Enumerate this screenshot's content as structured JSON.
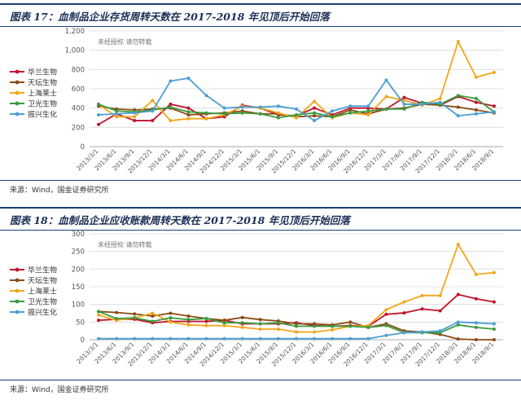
{
  "charts": [
    {
      "caption": "图表 17：血制品企业存货周转天数在 2017-2018 年见顶后开始回落",
      "watermark": "未经授权 请勿转载",
      "source": "来源：Wind，国金证券研究所"
    },
    {
      "caption": "图表 18：血制品企业应收账款周转天数在 2017-2018 年见顶后开始回落",
      "watermark": "未经授权 请勿转载",
      "source": "来源：Wind，国金证券研究所"
    }
  ],
  "chart_data": [
    {
      "type": "line",
      "title": "图表 17：血制品企业存货周转天数在 2017-2018 年见顶后开始回落",
      "x": [
        "2013/3/1",
        "2013/6/1",
        "2013/9/1",
        "2013/12/1",
        "2014/3/1",
        "2014/6/1",
        "2014/9/1",
        "2014/12/1",
        "2015/3/1",
        "2015/6/1",
        "2015/9/1",
        "2015/12/1",
        "2016/3/1",
        "2016/6/1",
        "2016/9/1",
        "2016/12/1",
        "2017/3/1",
        "2017/6/1",
        "2017/9/1",
        "2017/12/1",
        "2018/3/1",
        "2018/6/1",
        "2018/9/1"
      ],
      "ylim": [
        0,
        1200
      ],
      "yticks": [
        "0",
        "200",
        "400",
        "600",
        "800",
        "1,000",
        "1,200"
      ],
      "grid": true,
      "legend": "left",
      "series": [
        {
          "name": "华兰生物",
          "color": "#c0142b",
          "values": [
            230,
            340,
            270,
            270,
            440,
            400,
            290,
            310,
            430,
            400,
            330,
            320,
            400,
            330,
            400,
            400,
            390,
            510,
            450,
            430,
            520,
            460,
            420
          ]
        },
        {
          "name": "天坛生物",
          "color": "#8a4b14",
          "values": [
            420,
            390,
            380,
            390,
            400,
            330,
            340,
            350,
            370,
            340,
            340,
            310,
            320,
            310,
            380,
            340,
            390,
            400,
            440,
            430,
            410,
            380,
            350
          ]
        },
        {
          "name": "上海莱士",
          "color": "#f2a71b",
          "values": [
            440,
            310,
            310,
            480,
            270,
            290,
            290,
            330,
            420,
            400,
            350,
            300,
            470,
            300,
            350,
            330,
            520,
            480,
            430,
            500,
            1090,
            720,
            770
          ]
        },
        {
          "name": "卫光生物",
          "color": "#3a9b3e",
          "values": [
            440,
            370,
            360,
            380,
            410,
            360,
            350,
            340,
            350,
            340,
            300,
            330,
            350,
            310,
            350,
            370,
            390,
            390,
            460,
            440,
            530,
            500,
            360
          ]
        },
        {
          "name": "振兴生化",
          "color": "#4a9fd3",
          "values": [
            330,
            340,
            350,
            370,
            680,
            710,
            530,
            400,
            410,
            410,
            420,
            390,
            270,
            370,
            420,
            420,
            690,
            440,
            440,
            460,
            320,
            340,
            360
          ]
        }
      ]
    },
    {
      "type": "line",
      "title": "图表 18：血制品企业应收账款周转天数在 2017-2018 年见顶后开始回落",
      "x": [
        "2013/3/1",
        "2013/6/1",
        "2013/9/1",
        "2013/12/1",
        "2014/3/1",
        "2014/6/1",
        "2014/9/1",
        "2014/12/1",
        "2015/3/1",
        "2015/6/1",
        "2015/9/1",
        "2015/12/1",
        "2016/3/1",
        "2016/6/1",
        "2016/9/1",
        "2016/12/1",
        "2017/3/1",
        "2017/6/1",
        "2017/9/1",
        "2017/12/1",
        "2018/3/1",
        "2018/6/1",
        "2018/9/1"
      ],
      "ylim": [
        0,
        300
      ],
      "yticks": [
        "0",
        "50",
        "100",
        "150",
        "200",
        "250",
        "300"
      ],
      "grid": true,
      "legend": "left",
      "series": [
        {
          "name": "华兰生物",
          "color": "#c0142b",
          "values": [
            55,
            58,
            58,
            48,
            52,
            52,
            52,
            55,
            45,
            45,
            45,
            48,
            40,
            38,
            40,
            38,
            72,
            76,
            87,
            82,
            128,
            116,
            107
          ]
        },
        {
          "name": "天坛生物",
          "color": "#8a4b14",
          "values": [
            80,
            77,
            73,
            67,
            75,
            67,
            60,
            55,
            63,
            57,
            53,
            45,
            45,
            42,
            50,
            35,
            45,
            25,
            22,
            15,
            2,
            0,
            0
          ]
        },
        {
          "name": "上海莱士",
          "color": "#f2a71b",
          "values": [
            70,
            55,
            62,
            75,
            50,
            42,
            40,
            40,
            35,
            30,
            30,
            22,
            22,
            28,
            38,
            40,
            85,
            107,
            125,
            125,
            270,
            185,
            190
          ]
        },
        {
          "name": "卫光生物",
          "color": "#3a9b3e",
          "values": [
            80,
            60,
            62,
            52,
            62,
            57,
            60,
            48,
            48,
            45,
            48,
            38,
            38,
            38,
            38,
            35,
            40,
            20,
            20,
            20,
            42,
            35,
            30
          ]
        },
        {
          "name": "振兴生化",
          "color": "#4a9fd3",
          "values": [
            3,
            3,
            3,
            3,
            3,
            3,
            3,
            3,
            3,
            3,
            3,
            3,
            3,
            3,
            3,
            3,
            12,
            20,
            22,
            25,
            50,
            48,
            45
          ]
        }
      ]
    }
  ]
}
